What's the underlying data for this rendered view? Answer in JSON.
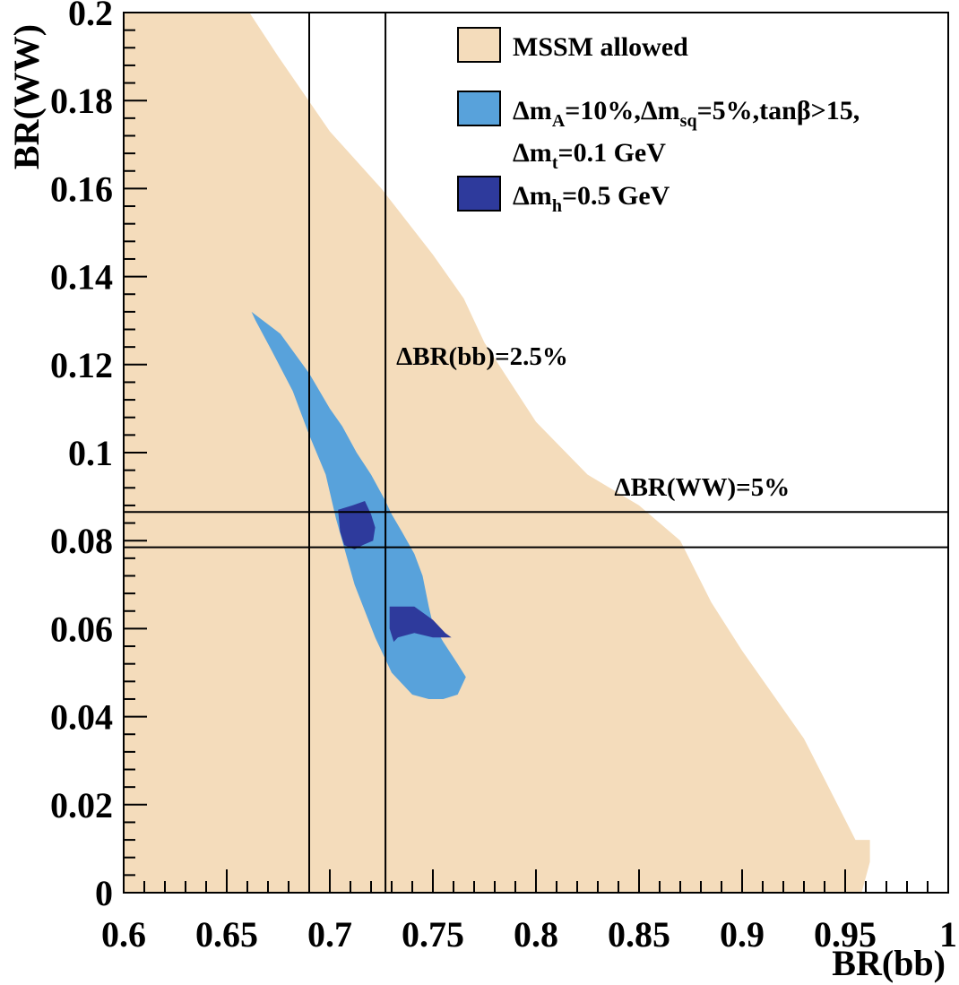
{
  "chart_data": {
    "type": "area",
    "title": "",
    "xlabel": "BR(bb)",
    "ylabel": "BR(WW)",
    "xlim": [
      0.6,
      1.0
    ],
    "ylim": [
      0,
      0.2
    ],
    "x_ticks": [
      "0.6",
      "0.65",
      "0.7",
      "0.75",
      "0.8",
      "0.85",
      "0.9",
      "0.95",
      "1"
    ],
    "x_tick_values": [
      0.6,
      0.65,
      0.7,
      0.75,
      0.8,
      0.85,
      0.9,
      0.95,
      1.0
    ],
    "y_ticks": [
      "0",
      "0.02",
      "0.04",
      "0.06",
      "0.08",
      "0.1",
      "0.12",
      "0.14",
      "0.16",
      "0.18",
      "0.2"
    ],
    "y_tick_values": [
      0,
      0.02,
      0.04,
      0.06,
      0.08,
      0.1,
      0.12,
      0.14,
      0.16,
      0.18,
      0.2
    ],
    "colors": {
      "mssm_allowed": "#f4dcbb",
      "mid_constraint": "#58a2db",
      "mh_constraint": "#2e3a9c",
      "lines": "#000000"
    },
    "legend": {
      "placement": "top-right",
      "entries": [
        {
          "key": "mssm_allowed",
          "lines": [
            {
              "main": "MSSM allowed"
            }
          ]
        },
        {
          "key": "mid_constraint",
          "lines": [
            {
              "main": "Δm",
              "sub": "A",
              "rest": "=10%,Δm",
              "sub2": "sq",
              "rest2": "=5%,tanβ>15,"
            },
            {
              "main": "Δm",
              "sub": "t",
              "rest": "=0.1 GeV"
            }
          ]
        },
        {
          "key": "mh_constraint",
          "lines": [
            {
              "main": "Δm",
              "sub": "h",
              "rest": "=0.5 GeV"
            }
          ]
        }
      ]
    },
    "regions": [
      {
        "name": "MSSM allowed",
        "color_key": "mssm_allowed",
        "points": [
          [
            0.6,
            0.2
          ],
          [
            0.661,
            0.2
          ],
          [
            0.675,
            0.19
          ],
          [
            0.7,
            0.173
          ],
          [
            0.725,
            0.16
          ],
          [
            0.75,
            0.145
          ],
          [
            0.765,
            0.135
          ],
          [
            0.775,
            0.125
          ],
          [
            0.8,
            0.107
          ],
          [
            0.825,
            0.095
          ],
          [
            0.85,
            0.088
          ],
          [
            0.87,
            0.08
          ],
          [
            0.885,
            0.066
          ],
          [
            0.9,
            0.055
          ],
          [
            0.93,
            0.035
          ],
          [
            0.955,
            0.012
          ],
          [
            0.962,
            0.012
          ],
          [
            0.962,
            0.007
          ],
          [
            0.958,
            0
          ],
          [
            0.6,
            0
          ]
        ]
      },
      {
        "name": "Δm_A=10%,Δm_sq=5%,tanβ>15,Δm_t=0.1 GeV",
        "color_key": "mid_constraint",
        "points": [
          [
            0.662,
            0.132
          ],
          [
            0.676,
            0.127
          ],
          [
            0.69,
            0.118
          ],
          [
            0.7,
            0.11
          ],
          [
            0.706,
            0.106
          ],
          [
            0.713,
            0.1
          ],
          [
            0.72,
            0.095
          ],
          [
            0.727,
            0.089
          ],
          [
            0.73,
            0.086
          ],
          [
            0.735,
            0.082
          ],
          [
            0.741,
            0.077
          ],
          [
            0.745,
            0.072
          ],
          [
            0.748,
            0.065
          ],
          [
            0.75,
            0.061
          ],
          [
            0.755,
            0.057
          ],
          [
            0.762,
            0.052
          ],
          [
            0.766,
            0.049
          ],
          [
            0.762,
            0.045
          ],
          [
            0.755,
            0.044
          ],
          [
            0.748,
            0.044
          ],
          [
            0.74,
            0.045
          ],
          [
            0.73,
            0.05
          ],
          [
            0.722,
            0.058
          ],
          [
            0.712,
            0.07
          ],
          [
            0.703,
            0.085
          ],
          [
            0.698,
            0.095
          ],
          [
            0.69,
            0.104
          ],
          [
            0.682,
            0.114
          ],
          [
            0.672,
            0.123
          ],
          [
            0.664,
            0.13
          ]
        ]
      },
      {
        "name": "Δm_h=0.5 GeV (upper)",
        "color_key": "mh_constraint",
        "points": [
          [
            0.704,
            0.087
          ],
          [
            0.711,
            0.088
          ],
          [
            0.717,
            0.089
          ],
          [
            0.72,
            0.086
          ],
          [
            0.722,
            0.083
          ],
          [
            0.721,
            0.08
          ],
          [
            0.716,
            0.079
          ],
          [
            0.712,
            0.078
          ],
          [
            0.707,
            0.079
          ],
          [
            0.705,
            0.082
          ]
        ]
      },
      {
        "name": "Δm_h=0.5 GeV (lower)",
        "color_key": "mh_constraint",
        "points": [
          [
            0.729,
            0.065
          ],
          [
            0.741,
            0.065
          ],
          [
            0.75,
            0.062
          ],
          [
            0.756,
            0.059
          ],
          [
            0.759,
            0.058
          ],
          [
            0.75,
            0.058
          ],
          [
            0.741,
            0.059
          ],
          [
            0.733,
            0.058
          ],
          [
            0.731,
            0.057
          ],
          [
            0.729,
            0.06
          ]
        ]
      }
    ],
    "vertical_lines": [
      0.69,
      0.727
    ],
    "horizontal_lines": [
      0.0865,
      0.0785
    ],
    "annotations": [
      {
        "text": "ΔBR(bb)=2.5%",
        "x": 0.727,
        "y": 0.12
      },
      {
        "text": "ΔBR(WW)=5%",
        "x": 0.838,
        "y": 0.089
      }
    ]
  }
}
